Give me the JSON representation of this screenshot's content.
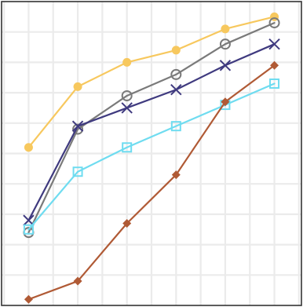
{
  "chart_data": {
    "type": "line",
    "title": "",
    "xlabel": "",
    "ylabel": "",
    "x": [
      1,
      2,
      3,
      4,
      5,
      6
    ],
    "xlim": [
      0.45,
      6.55
    ],
    "ylim": [
      0.0,
      1.0
    ],
    "grid": true,
    "legend": "none",
    "series": [
      {
        "marker": "filled-circle",
        "color": "#f7c85e",
        "values": [
          0.52,
          0.72,
          0.8,
          0.84,
          0.91,
          0.95
        ]
      },
      {
        "marker": "open-circle",
        "color": "#7a7a7a",
        "values": [
          0.24,
          0.58,
          0.69,
          0.76,
          0.86,
          0.93
        ]
      },
      {
        "marker": "x-cross",
        "color": "#3f3a7f",
        "values": [
          0.28,
          0.59,
          0.65,
          0.71,
          0.79,
          0.86
        ]
      },
      {
        "marker": "open-square",
        "color": "#6fdcf0",
        "values": [
          0.25,
          0.44,
          0.52,
          0.59,
          0.66,
          0.73
        ]
      },
      {
        "marker": "filled-diamond",
        "color": "#b05a35",
        "values": [
          0.02,
          0.08,
          0.27,
          0.43,
          0.67,
          0.79
        ]
      }
    ]
  }
}
